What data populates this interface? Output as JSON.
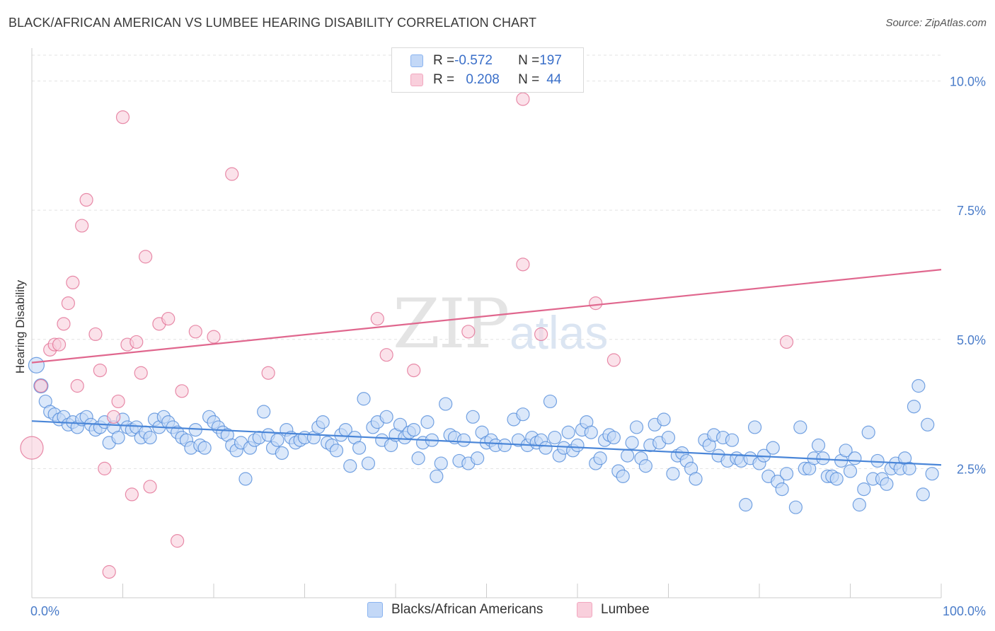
{
  "title": "BLACK/AFRICAN AMERICAN VS LUMBEE HEARING DISABILITY CORRELATION CHART",
  "source": "Source: ZipAtlas.com",
  "watermark": {
    "zip": "ZIP",
    "atlas": "atlas"
  },
  "legend": {
    "rows": [
      {
        "r_label": "R = ",
        "r_value": "-0.572",
        "n_label": "N = ",
        "n_value": "197",
        "color": "#8ab4f0",
        "fill": "#c3d8f7"
      },
      {
        "r_label": "R = ",
        "r_value": "0.208",
        "n_label": "N = ",
        "n_value": "44",
        "color": "#f2a7bf",
        "fill": "#f9cfdc"
      }
    ]
  },
  "bottom_legend": [
    {
      "label": "Blacks/African Americans",
      "color": "#8ab4f0",
      "fill": "#c3d8f7"
    },
    {
      "label": "Lumbee",
      "color": "#f2a7bf",
      "fill": "#f9cfdc"
    }
  ],
  "chart_data": {
    "type": "scatter",
    "title": "BLACK/AFRICAN AMERICAN VS LUMBEE HEARING DISABILITY CORRELATION CHART",
    "xlabel": "",
    "ylabel": "Hearing Disability",
    "xlim": [
      0,
      100
    ],
    "ylim": [
      0,
      10.5
    ],
    "x_tick_labels": [
      "0.0%",
      "100.0%"
    ],
    "y_ticks": [
      2.5,
      5.0,
      7.5,
      10.0
    ],
    "y_tick_labels": [
      "2.5%",
      "5.0%",
      "7.5%",
      "10.0%"
    ],
    "grid": true,
    "series": [
      {
        "name": "Blacks/African Americans",
        "color": "#4a86d8",
        "fill": "#c3d8f7",
        "trend": {
          "x": [
            0,
            100
          ],
          "y": [
            3.42,
            2.57
          ]
        },
        "points": [
          [
            0.5,
            4.5
          ],
          [
            1.0,
            4.1
          ],
          [
            1.5,
            3.8
          ],
          [
            2.0,
            3.6
          ],
          [
            2.5,
            3.55
          ],
          [
            3,
            3.45
          ],
          [
            3.5,
            3.5
          ],
          [
            4,
            3.35
          ],
          [
            4.5,
            3.4
          ],
          [
            5,
            3.3
          ],
          [
            5.5,
            3.45
          ],
          [
            6,
            3.5
          ],
          [
            6.5,
            3.35
          ],
          [
            7,
            3.25
          ],
          [
            7.5,
            3.3
          ],
          [
            8,
            3.4
          ],
          [
            8.5,
            3.0
          ],
          [
            9,
            3.3
          ],
          [
            9.5,
            3.1
          ],
          [
            10,
            3.45
          ],
          [
            10.5,
            3.3
          ],
          [
            11,
            3.25
          ],
          [
            11.5,
            3.3
          ],
          [
            12,
            3.1
          ],
          [
            12.5,
            3.2
          ],
          [
            13,
            3.1
          ],
          [
            13.5,
            3.45
          ],
          [
            14,
            3.3
          ],
          [
            14.5,
            3.5
          ],
          [
            15,
            3.4
          ],
          [
            15.5,
            3.3
          ],
          [
            16,
            3.2
          ],
          [
            16.5,
            3.1
          ],
          [
            17,
            3.05
          ],
          [
            17.5,
            2.9
          ],
          [
            18,
            3.25
          ],
          [
            18.5,
            2.95
          ],
          [
            19,
            2.9
          ],
          [
            19.5,
            3.5
          ],
          [
            20,
            3.4
          ],
          [
            20.5,
            3.3
          ],
          [
            21,
            3.2
          ],
          [
            21.5,
            3.15
          ],
          [
            22,
            2.95
          ],
          [
            22.5,
            2.85
          ],
          [
            23,
            3.0
          ],
          [
            23.5,
            2.3
          ],
          [
            24,
            2.9
          ],
          [
            24.5,
            3.05
          ],
          [
            25,
            3.1
          ],
          [
            25.5,
            3.6
          ],
          [
            26,
            3.15
          ],
          [
            26.5,
            2.9
          ],
          [
            27,
            3.05
          ],
          [
            27.5,
            2.8
          ],
          [
            28,
            3.25
          ],
          [
            28.5,
            3.1
          ],
          [
            29,
            3.0
          ],
          [
            29.5,
            3.05
          ],
          [
            30,
            3.1
          ],
          [
            31,
            3.1
          ],
          [
            31.5,
            3.3
          ],
          [
            32,
            3.4
          ],
          [
            32.5,
            3.0
          ],
          [
            33,
            2.95
          ],
          [
            33.5,
            2.85
          ],
          [
            34,
            3.15
          ],
          [
            34.5,
            3.25
          ],
          [
            35,
            2.55
          ],
          [
            35.5,
            3.1
          ],
          [
            36,
            2.9
          ],
          [
            36.5,
            3.85
          ],
          [
            37,
            2.6
          ],
          [
            37.5,
            3.3
          ],
          [
            38,
            3.4
          ],
          [
            38.5,
            3.05
          ],
          [
            39,
            3.5
          ],
          [
            39.5,
            2.95
          ],
          [
            40,
            3.15
          ],
          [
            40.5,
            3.35
          ],
          [
            41,
            3.1
          ],
          [
            41.5,
            3.2
          ],
          [
            42,
            3.25
          ],
          [
            42.5,
            2.7
          ],
          [
            43,
            3.0
          ],
          [
            43.5,
            3.4
          ],
          [
            44,
            3.05
          ],
          [
            44.5,
            2.35
          ],
          [
            45,
            2.6
          ],
          [
            45.5,
            3.75
          ],
          [
            46,
            3.15
          ],
          [
            46.5,
            3.1
          ],
          [
            47,
            2.65
          ],
          [
            47.5,
            3.05
          ],
          [
            48,
            2.6
          ],
          [
            48.5,
            3.5
          ],
          [
            49,
            2.7
          ],
          [
            49.5,
            3.2
          ],
          [
            50,
            3.0
          ],
          [
            50.5,
            3.05
          ],
          [
            51,
            2.95
          ],
          [
            52,
            2.95
          ],
          [
            53,
            3.45
          ],
          [
            53.5,
            3.05
          ],
          [
            54,
            3.55
          ],
          [
            54.5,
            2.95
          ],
          [
            55,
            3.1
          ],
          [
            55.5,
            3.0
          ],
          [
            56,
            3.05
          ],
          [
            56.5,
            2.9
          ],
          [
            57,
            3.8
          ],
          [
            57.5,
            3.1
          ],
          [
            58,
            2.75
          ],
          [
            58.5,
            2.9
          ],
          [
            59,
            3.2
          ],
          [
            59.5,
            2.85
          ],
          [
            60,
            2.95
          ],
          [
            60.5,
            3.25
          ],
          [
            61,
            3.4
          ],
          [
            61.5,
            3.2
          ],
          [
            62,
            2.6
          ],
          [
            62.5,
            2.7
          ],
          [
            63,
            3.05
          ],
          [
            63.5,
            3.15
          ],
          [
            64,
            3.1
          ],
          [
            64.5,
            2.45
          ],
          [
            65,
            2.35
          ],
          [
            65.5,
            2.75
          ],
          [
            66,
            3.0
          ],
          [
            66.5,
            3.3
          ],
          [
            67,
            2.7
          ],
          [
            67.5,
            2.55
          ],
          [
            68,
            2.95
          ],
          [
            68.5,
            3.35
          ],
          [
            69,
            3.0
          ],
          [
            69.5,
            3.45
          ],
          [
            70,
            3.1
          ],
          [
            70.5,
            2.4
          ],
          [
            71,
            2.75
          ],
          [
            71.5,
            2.8
          ],
          [
            72,
            2.65
          ],
          [
            72.5,
            2.5
          ],
          [
            73,
            2.3
          ],
          [
            74,
            3.05
          ],
          [
            74.5,
            2.95
          ],
          [
            75,
            3.15
          ],
          [
            75.5,
            2.75
          ],
          [
            76,
            3.1
          ],
          [
            76.5,
            2.65
          ],
          [
            77,
            3.05
          ],
          [
            77.5,
            2.7
          ],
          [
            78,
            2.65
          ],
          [
            78.5,
            1.8
          ],
          [
            79,
            2.7
          ],
          [
            79.5,
            3.3
          ],
          [
            80,
            2.6
          ],
          [
            80.5,
            2.75
          ],
          [
            81,
            2.35
          ],
          [
            81.5,
            2.9
          ],
          [
            82,
            2.25
          ],
          [
            82.5,
            2.1
          ],
          [
            83,
            2.4
          ],
          [
            84,
            1.75
          ],
          [
            84.5,
            3.3
          ],
          [
            85,
            2.5
          ],
          [
            85.5,
            2.5
          ],
          [
            86,
            2.7
          ],
          [
            86.5,
            2.95
          ],
          [
            87,
            2.7
          ],
          [
            87.5,
            2.35
          ],
          [
            88,
            2.35
          ],
          [
            88.5,
            2.3
          ],
          [
            89,
            2.65
          ],
          [
            89.5,
            2.85
          ],
          [
            90,
            2.45
          ],
          [
            90.5,
            2.7
          ],
          [
            91,
            1.8
          ],
          [
            91.5,
            2.1
          ],
          [
            92,
            3.2
          ],
          [
            92.5,
            2.3
          ],
          [
            93,
            2.65
          ],
          [
            93.5,
            2.3
          ],
          [
            94,
            2.2
          ],
          [
            94.5,
            2.5
          ],
          [
            95,
            2.6
          ],
          [
            95.5,
            2.5
          ],
          [
            96,
            2.7
          ],
          [
            96.5,
            2.5
          ],
          [
            97,
            3.7
          ],
          [
            97.5,
            4.1
          ],
          [
            98,
            2.0
          ],
          [
            98.5,
            3.35
          ],
          [
            99,
            2.4
          ]
        ]
      },
      {
        "name": "Lumbee",
        "color": "#e0678e",
        "fill": "#f9cfdc",
        "trend": {
          "x": [
            0,
            100
          ],
          "y": [
            4.55,
            6.35
          ]
        },
        "points": [
          [
            0,
            2.9
          ],
          [
            1,
            4.1
          ],
          [
            2,
            4.8
          ],
          [
            2.5,
            4.9
          ],
          [
            3,
            4.9
          ],
          [
            3.5,
            5.3
          ],
          [
            4,
            5.7
          ],
          [
            4.5,
            6.1
          ],
          [
            5,
            4.1
          ],
          [
            5.5,
            7.2
          ],
          [
            6,
            7.7
          ],
          [
            7,
            5.1
          ],
          [
            7.5,
            4.4
          ],
          [
            8,
            2.5
          ],
          [
            8.5,
            0.5
          ],
          [
            9,
            3.5
          ],
          [
            9.5,
            3.8
          ],
          [
            10,
            9.3
          ],
          [
            10.5,
            4.9
          ],
          [
            11,
            2.0
          ],
          [
            11.5,
            4.95
          ],
          [
            12,
            4.35
          ],
          [
            12.5,
            6.6
          ],
          [
            13,
            2.15
          ],
          [
            14,
            5.3
          ],
          [
            15,
            5.4
          ],
          [
            16,
            1.1
          ],
          [
            16.5,
            4.0
          ],
          [
            18,
            5.15
          ],
          [
            20,
            5.05
          ],
          [
            22,
            8.2
          ],
          [
            26,
            4.35
          ],
          [
            38,
            5.4
          ],
          [
            39,
            4.7
          ],
          [
            42,
            4.4
          ],
          [
            48,
            5.15
          ],
          [
            54,
            6.45
          ],
          [
            56,
            5.1
          ],
          [
            62,
            5.7
          ],
          [
            64,
            4.6
          ],
          [
            83,
            4.95
          ],
          [
            54,
            9.65
          ]
        ]
      }
    ]
  }
}
